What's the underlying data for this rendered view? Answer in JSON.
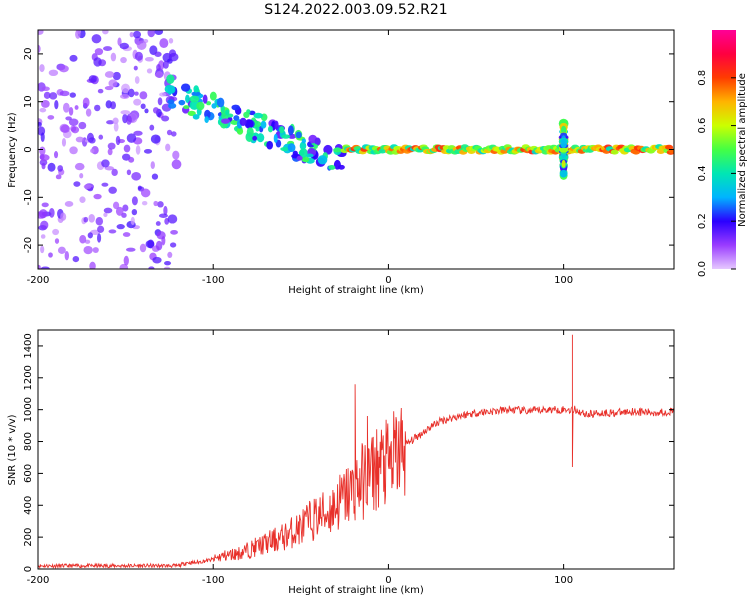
{
  "title": "S124.2022.003.09.52.R21",
  "chart_data": [
    {
      "type": "heatmap",
      "xlabel": "Height of straight line (km)",
      "ylabel": "Frequency (Hz)",
      "xlim": [
        -200,
        163
      ],
      "ylim": [
        -25,
        25
      ],
      "xticks": [
        -200,
        -100,
        0,
        100
      ],
      "yticks": [
        -20,
        -10,
        0,
        10,
        20
      ],
      "colorbar": {
        "label": "Normalized spectral amplitude",
        "range": [
          0,
          1
        ],
        "ticks": [
          "0.0",
          "0.2",
          "0.4",
          "0.6",
          "0.8"
        ],
        "colormap": [
          "#e6c8ff",
          "#9a3cff",
          "#2a00ff",
          "#00b4ff",
          "#00e6b4",
          "#44ff44",
          "#ccff00",
          "#ffb400",
          "#ff3c00",
          "#ff0040",
          "#ff0096"
        ]
      },
      "features": [
        {
          "x": [
            -200,
            -120
          ],
          "y": [
            -25,
            25
          ],
          "amplitude": 0.1
        },
        {
          "x": [
            -125,
            -25
          ],
          "y": [
            12,
            -3
          ],
          "amplitude": 0.3
        },
        {
          "x": [
            -25,
            163
          ],
          "y": [
            0,
            0
          ],
          "amplitude": 0.7
        },
        {
          "x": [
            100,
            100
          ],
          "y": [
            -3,
            3
          ],
          "amplitude": 0.4
        }
      ]
    },
    {
      "type": "line",
      "xlabel": "Height of straight line (km)",
      "ylabel": "SNR (10 * v/v)",
      "xlim": [
        -200,
        163
      ],
      "ylim": [
        0,
        1500
      ],
      "xticks": [
        -200,
        -100,
        0,
        100
      ],
      "yticks": [
        0,
        200,
        400,
        600,
        800,
        1000,
        1200,
        1400
      ],
      "color": "#e8302a",
      "series": [
        {
          "x": [
            -200,
            -190,
            -180,
            -170,
            -160,
            -150,
            -140,
            -130,
            -120,
            -115,
            -110,
            -105,
            -100,
            -95,
            -90,
            -85,
            -80,
            -75,
            -70,
            -65,
            -60,
            -55,
            -50,
            -45,
            -40,
            -35,
            -30,
            -25,
            -20,
            -15,
            -10,
            -5,
            0,
            5,
            10,
            15,
            20,
            25,
            30,
            40,
            50,
            60,
            70,
            80,
            90,
            95,
            100,
            103,
            105,
            107,
            110,
            115,
            120,
            130,
            140,
            150,
            163
          ],
          "values": [
            20,
            20,
            20,
            20,
            20,
            20,
            20,
            20,
            20,
            40,
            40,
            50,
            60,
            80,
            90,
            100,
            120,
            140,
            160,
            180,
            200,
            230,
            260,
            300,
            330,
            350,
            400,
            450,
            500,
            550,
            600,
            650,
            650,
            720,
            780,
            820,
            860,
            900,
            930,
            960,
            980,
            990,
            1000,
            990,
            1000,
            1000,
            1000,
            1000,
            1000,
            1000,
            980,
            970,
            980,
            980,
            990,
            980,
            990
          ]
        }
      ],
      "peaks": [
        {
          "x": -19,
          "y": 1160
        },
        {
          "x": -12,
          "y": 960
        },
        {
          "x": 105,
          "y": 1470
        },
        {
          "x": 105,
          "y": 640
        }
      ]
    }
  ]
}
